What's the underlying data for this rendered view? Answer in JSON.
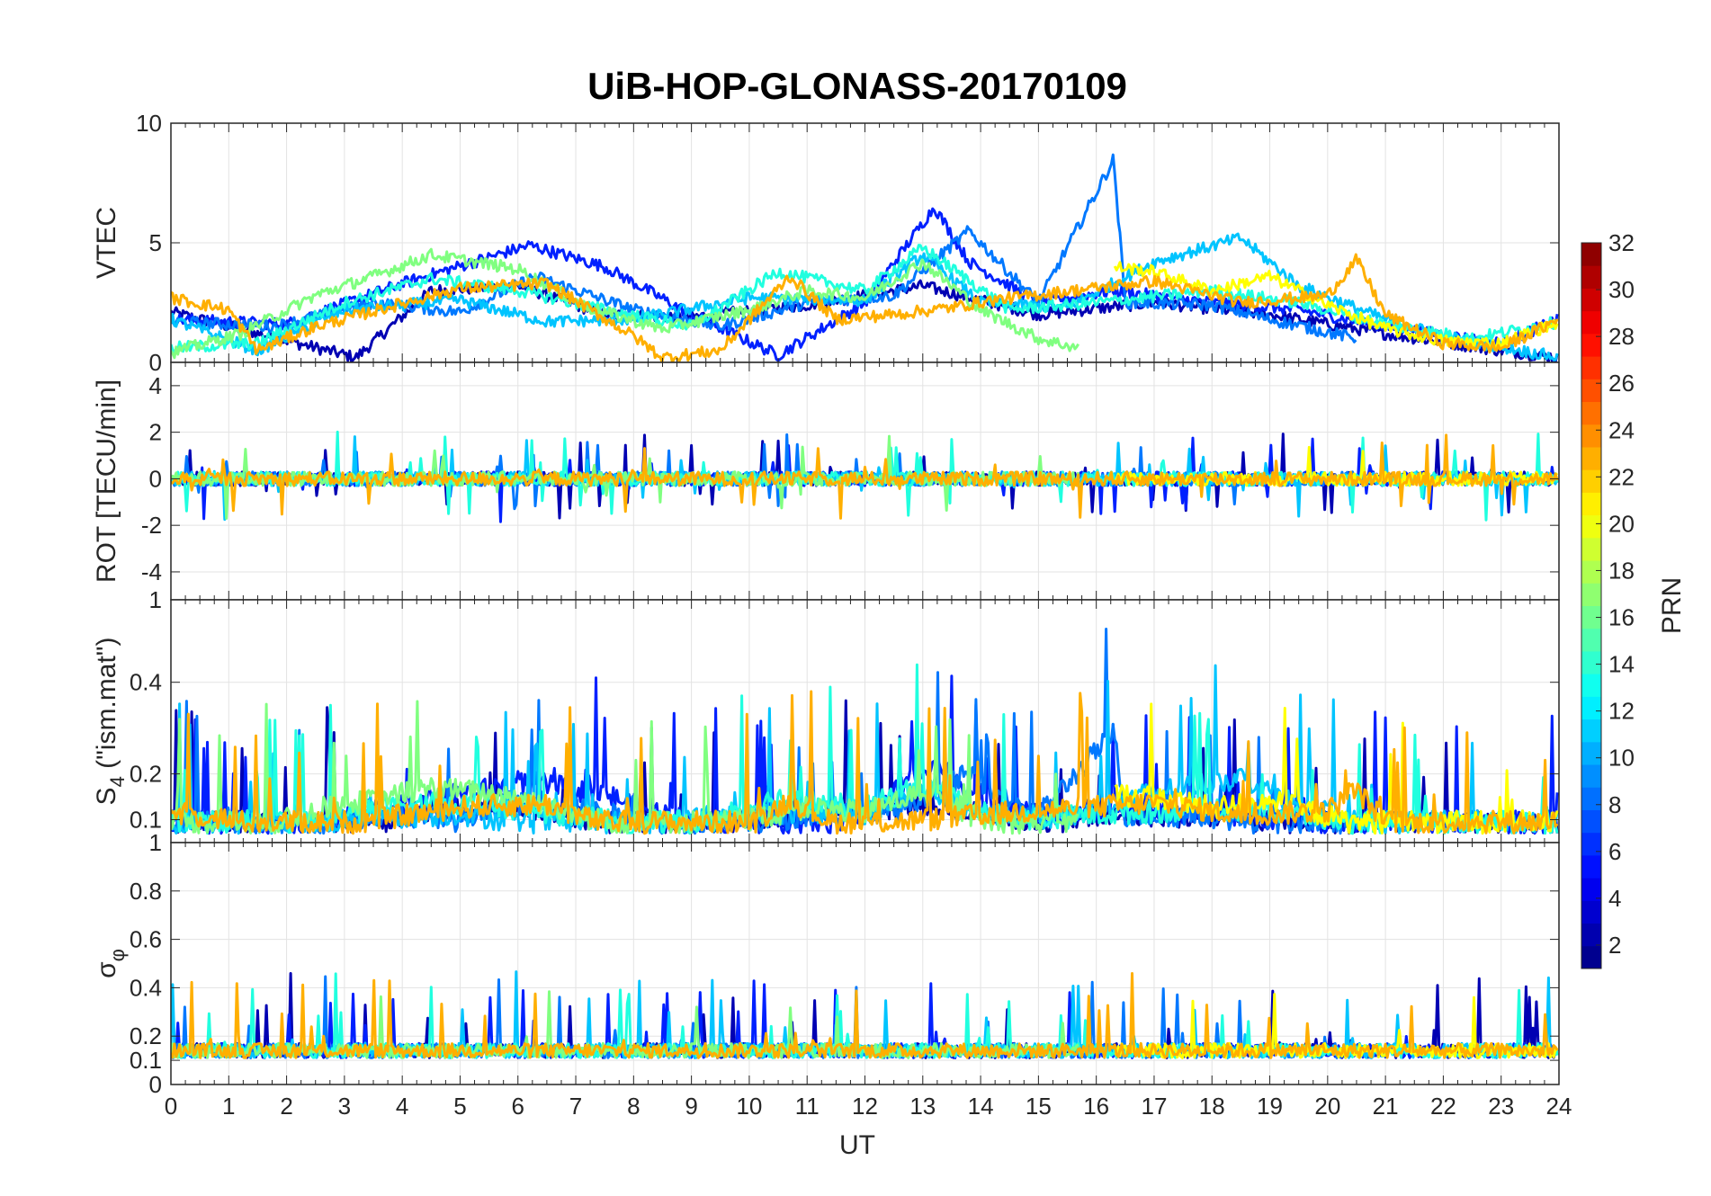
{
  "chart_data": {
    "type": "line",
    "title": "UiB-HOP-GLONASS-20170109",
    "x_label": "UT",
    "x_ticks": [
      "0",
      "1",
      "2",
      "3",
      "4",
      "5",
      "6",
      "7",
      "8",
      "9",
      "10",
      "11",
      "12",
      "13",
      "14",
      "15",
      "16",
      "17",
      "18",
      "19",
      "20",
      "21",
      "22",
      "23",
      "24"
    ],
    "xlim": [
      0,
      24
    ],
    "panels": [
      {
        "name": "vtec",
        "ylabel": "VTEC",
        "ylim": [
          0,
          10
        ],
        "y_ticks": [
          "0",
          "5",
          "10"
        ],
        "y_tick_values": [
          0,
          5,
          10
        ]
      },
      {
        "name": "rot",
        "ylabel": "ROT [TECU/min]",
        "ylim": [
          -5.2,
          5
        ],
        "y_ticks": [
          "-4",
          "-2",
          "0",
          "2",
          "4"
        ],
        "y_tick_values": [
          -4,
          -2,
          0,
          2,
          4
        ]
      },
      {
        "name": "s4",
        "ylabel": "S4 (\"ism.mat\")",
        "ylabel_main": "S",
        "ylabel_sub": "4",
        "ylabel_rest": " (\"ism.mat\")",
        "ylim": [
          0.05,
          0.58
        ],
        "y_ticks": [
          "0.1",
          "0.2",
          "0.4"
        ],
        "y_tick_values": [
          0.1,
          0.2,
          0.4
        ],
        "top_tick": "1"
      },
      {
        "name": "sigma_phi",
        "ylabel": "σφ",
        "ylabel_main": "σ",
        "ylabel_sub": "φ",
        "ylim": [
          0,
          1
        ],
        "y_ticks": [
          "0",
          "0.1",
          "0.2",
          "0.4",
          "0.6",
          "0.8",
          "1"
        ],
        "y_tick_values": [
          0,
          0.1,
          0.2,
          0.4,
          0.6,
          0.8,
          1
        ]
      }
    ],
    "colorbar": {
      "label": "PRN",
      "range": [
        1,
        32
      ],
      "ticks": [
        "2",
        "4",
        "6",
        "8",
        "10",
        "12",
        "14",
        "16",
        "18",
        "20",
        "22",
        "24",
        "26",
        "28",
        "30",
        "32"
      ],
      "tick_values": [
        2,
        4,
        6,
        8,
        10,
        12,
        14,
        16,
        18,
        20,
        22,
        24,
        26,
        28,
        30,
        32
      ],
      "colormap": "jet"
    },
    "series": [
      {
        "prn": 2,
        "color": "#0000b3",
        "vtec_anchor": [
          [
            0,
            2.1
          ],
          [
            3.2,
            0.2
          ],
          [
            4.5,
            3.0
          ],
          [
            6,
            3.2
          ],
          [
            7.5,
            2.0
          ],
          [
            9,
            1.9
          ],
          [
            11,
            2.4
          ],
          [
            13,
            3.2
          ],
          [
            15,
            2.0
          ],
          [
            17,
            2.5
          ],
          [
            19,
            2.0
          ],
          [
            21,
            1.2
          ],
          [
            23,
            0.5
          ],
          [
            24,
            0.2
          ]
        ]
      },
      {
        "prn": 5,
        "color": "#0020ff",
        "vtec_anchor": [
          [
            0,
            1.8
          ],
          [
            2,
            1.6
          ],
          [
            4,
            3.3
          ],
          [
            6.2,
            4.9
          ],
          [
            7.5,
            4.0
          ],
          [
            9,
            2.0
          ],
          [
            10.5,
            0.3
          ],
          [
            12,
            2.5
          ],
          [
            13.2,
            6.5
          ],
          [
            13.8,
            4.2
          ],
          [
            15,
            2.5
          ],
          [
            16.3,
            3.0
          ],
          [
            18,
            2.5
          ],
          [
            19.5,
            2.2
          ],
          [
            21,
            1.5
          ],
          [
            23,
            0.8
          ],
          [
            24,
            1.8
          ]
        ]
      },
      {
        "prn": 8,
        "color": "#0078ff",
        "vtec_anchor": [
          [
            0,
            1.7
          ],
          [
            1.8,
            1.5
          ],
          [
            3.5,
            2.5
          ],
          [
            5,
            2.1
          ],
          [
            6.3,
            3.6
          ],
          [
            8,
            2.2
          ],
          [
            9.5,
            1.5
          ],
          [
            11,
            2.5
          ],
          [
            12.5,
            2.8
          ],
          [
            13.8,
            5.5
          ],
          [
            15,
            2.5
          ],
          [
            16.3,
            8.5
          ],
          [
            16.5,
            2.5
          ],
          [
            18,
            2.4
          ],
          [
            19,
            1.8
          ],
          [
            20.5,
            1.0
          ]
        ]
      },
      {
        "prn": 11,
        "color": "#00c4ff",
        "vtec_anchor": [
          [
            0,
            1.8
          ],
          [
            1.5,
            0.5
          ],
          [
            3,
            2.2
          ],
          [
            5,
            2.6
          ],
          [
            6.5,
            1.7
          ],
          [
            8,
            1.8
          ],
          [
            10,
            2.7
          ],
          [
            12,
            2.6
          ],
          [
            13,
            4.5
          ],
          [
            14,
            2.5
          ],
          [
            15.5,
            2.3
          ],
          [
            17,
            4.2
          ],
          [
            18.5,
            5.2
          ],
          [
            19.5,
            3.2
          ],
          [
            21,
            1.8
          ],
          [
            22,
            1.1
          ],
          [
            24,
            0.2
          ]
        ]
      },
      {
        "prn": 13,
        "color": "#20ffdf",
        "vtec_anchor": [
          [
            0,
            0.6
          ],
          [
            1.5,
            0.8
          ],
          [
            3,
            2.5
          ],
          [
            4.5,
            3.5
          ],
          [
            6,
            3.0
          ],
          [
            7.5,
            2.2
          ],
          [
            9,
            1.5
          ],
          [
            10.5,
            3.8
          ],
          [
            12,
            3.0
          ],
          [
            13,
            4.8
          ],
          [
            14.5,
            2.2
          ],
          [
            16,
            2.5
          ],
          [
            18,
            3.0
          ],
          [
            19.5,
            2.5
          ],
          [
            21,
            1.6
          ],
          [
            22.5,
            1.0
          ],
          [
            24,
            1.7
          ]
        ]
      },
      {
        "prn": 17,
        "color": "#80ff80",
        "vtec_anchor": [
          [
            0,
            0.4
          ],
          [
            1.2,
            1.2
          ],
          [
            2.5,
            2.8
          ],
          [
            3.5,
            3.6
          ],
          [
            4.5,
            4.5
          ],
          [
            6,
            3.9
          ],
          [
            7.2,
            2.3
          ],
          [
            8.5,
            1.4
          ],
          [
            10,
            2.2
          ],
          [
            11,
            3.0
          ],
          [
            12,
            2.7
          ],
          [
            13,
            4.2
          ],
          [
            14,
            2.2
          ],
          [
            15,
            1.0
          ],
          [
            15.7,
            0.6
          ]
        ]
      },
      {
        "prn": 20,
        "color": "#ffff00",
        "vtec_anchor": [
          [
            16.3,
            4.0
          ],
          [
            17,
            3.8
          ],
          [
            18,
            3.0
          ],
          [
            19,
            3.6
          ],
          [
            20,
            2.4
          ],
          [
            21,
            1.4
          ],
          [
            22,
            0.9
          ],
          [
            23,
            0.8
          ],
          [
            24,
            1.7
          ]
        ]
      },
      {
        "prn": 22,
        "color": "#ffaf00",
        "vtec_anchor": [
          [
            0,
            2.7
          ],
          [
            1,
            2.2
          ],
          [
            1.5,
            0.5
          ],
          [
            2.5,
            1.5
          ],
          [
            5,
            3.1
          ],
          [
            6.5,
            3.3
          ],
          [
            8,
            1.1
          ],
          [
            8.5,
            0.2
          ],
          [
            9.5,
            0.5
          ],
          [
            10.7,
            3.6
          ],
          [
            11.5,
            1.8
          ],
          [
            12.5,
            2.0
          ],
          [
            13.5,
            2.3
          ],
          [
            14.2,
            2.6
          ],
          [
            17,
            3.4
          ],
          [
            18.5,
            2.5
          ],
          [
            20,
            2.8
          ],
          [
            20.5,
            4.3
          ],
          [
            21,
            2.0
          ],
          [
            22,
            0.8
          ],
          [
            23,
            0.6
          ],
          [
            24,
            1.8
          ]
        ]
      }
    ]
  }
}
